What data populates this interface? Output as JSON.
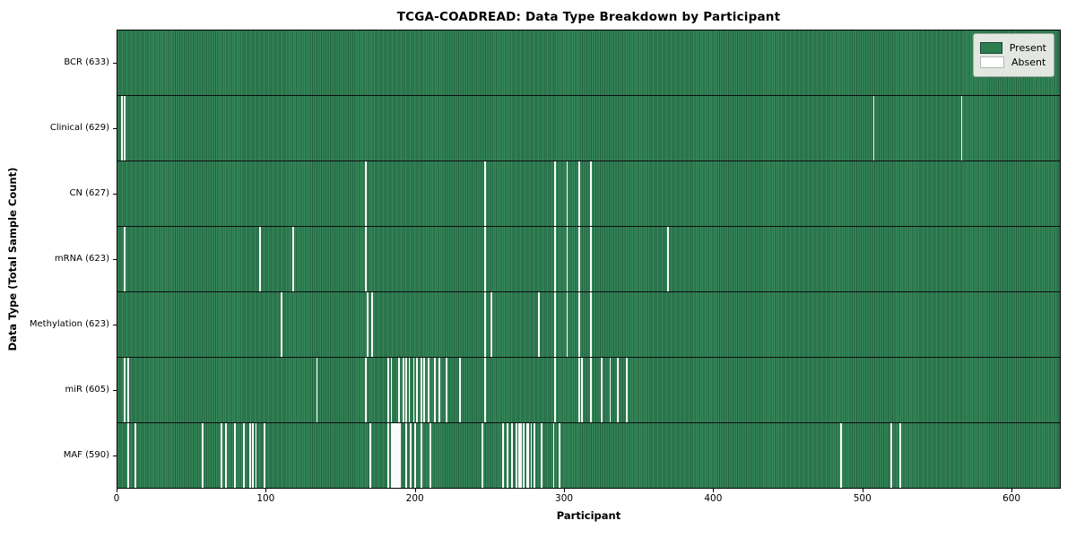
{
  "figure": {
    "title": "TCGA-COADREAD: Data Type Breakdown by Participant",
    "xlabel": "Participant",
    "ylabel": "Data Type (Total Sample Count)"
  },
  "legend": {
    "present_label": "Present",
    "absent_label": "Absent"
  },
  "chart_data": {
    "type": "heatmap",
    "title": "TCGA-COADREAD: Data Type Breakdown by Participant",
    "xlabel": "Participant",
    "ylabel": "Data Type (Total Sample Count)",
    "x_range": [
      0,
      633
    ],
    "n_participants": 633,
    "x_ticks": [
      0,
      100,
      200,
      300,
      400,
      500,
      600
    ],
    "grid": false,
    "legend_position": "upper-right",
    "legend": [
      {
        "label": "Present",
        "color": "#2e7d50"
      },
      {
        "label": "Absent",
        "color": "#ffffff"
      }
    ],
    "colors": {
      "present": "#2e7d50",
      "present_edge": "#215f3d",
      "absent": "#ffffff"
    },
    "rows": [
      {
        "data_type": "BCR",
        "label": "BCR (633)",
        "present_count": 633,
        "absent_count": 0,
        "absent_participants": []
      },
      {
        "data_type": "Clinical",
        "label": "Clinical (629)",
        "present_count": 629,
        "absent_count": 4,
        "absent_participants": [
          3,
          5,
          508,
          567
        ]
      },
      {
        "data_type": "CN",
        "label": "CN (627)",
        "present_count": 627,
        "absent_count": 6,
        "absent_participants": [
          167,
          247,
          294,
          302,
          310,
          318
        ]
      },
      {
        "data_type": "mRNA",
        "label": "mRNA (623)",
        "present_count": 623,
        "absent_count": 10,
        "absent_participants": [
          5,
          96,
          118,
          167,
          247,
          294,
          302,
          310,
          318,
          370
        ]
      },
      {
        "data_type": "Methylation",
        "label": "Methylation (623)",
        "present_count": 623,
        "absent_count": 10,
        "absent_participants": [
          110,
          168,
          171,
          247,
          251,
          283,
          294,
          302,
          310,
          318
        ]
      },
      {
        "data_type": "miR",
        "label": "miR (605)",
        "present_count": 605,
        "absent_count": 28,
        "absent_participants": [
          5,
          7,
          134,
          167,
          182,
          184,
          189,
          192,
          194,
          196,
          199,
          201,
          204,
          206,
          209,
          213,
          216,
          221,
          230,
          247,
          294,
          310,
          312,
          318,
          325,
          331,
          336,
          342
        ]
      },
      {
        "data_type": "MAF",
        "label": "MAF (590)",
        "present_count": 590,
        "absent_count": 43,
        "absent_participants": [
          7,
          12,
          57,
          70,
          73,
          79,
          85,
          89,
          91,
          93,
          99,
          170,
          182,
          184,
          185,
          186,
          187,
          188,
          189,
          190,
          194,
          197,
          200,
          204,
          210,
          245,
          259,
          262,
          265,
          268,
          270,
          271,
          273,
          275,
          276,
          278,
          280,
          285,
          293,
          297,
          486,
          520,
          526
        ]
      }
    ]
  }
}
